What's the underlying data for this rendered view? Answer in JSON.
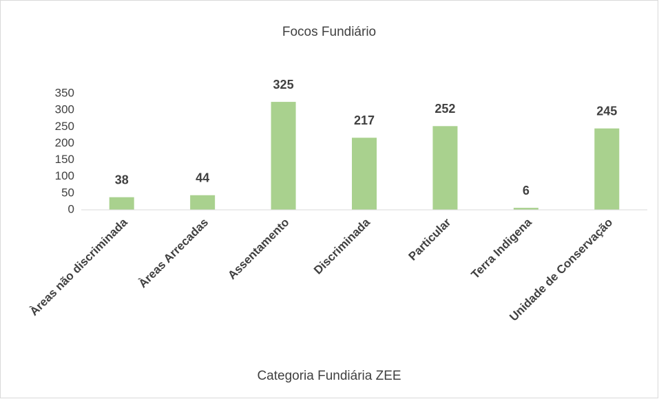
{
  "chart_data": {
    "type": "bar",
    "title": "Focos Fundiário",
    "x_label": "Categoria Fundiária ZEE",
    "categories": [
      "Àreas não discriminada",
      "Àreas Arrecadas",
      "Assentamento",
      "Discriminada",
      "Particular",
      "Terra Indigena",
      "Unidade de Conservação"
    ],
    "values": [
      38,
      44,
      325,
      217,
      252,
      6,
      245
    ],
    "color": "#a9d18e",
    "ylim": [
      0,
      350
    ],
    "yticks": [
      0,
      50,
      100,
      150,
      200,
      250,
      300,
      350
    ],
    "grid": false
  }
}
